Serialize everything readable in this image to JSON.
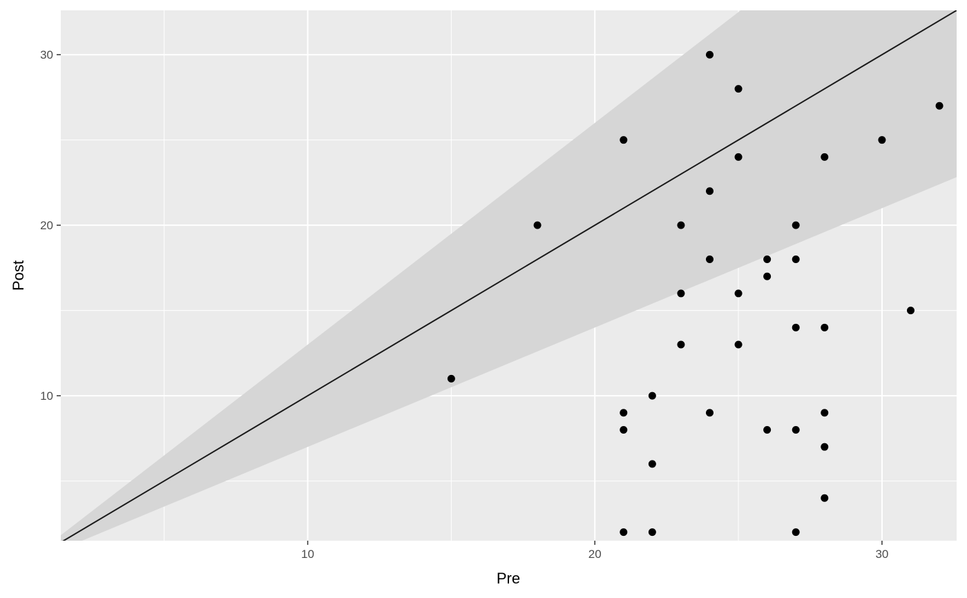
{
  "chart_data": {
    "type": "scatter",
    "xlabel": "Pre",
    "ylabel": "Post",
    "xlim": [
      1.4,
      32.6
    ],
    "ylim": [
      1.5,
      32.6
    ],
    "x_ticks": [
      10,
      20,
      30
    ],
    "y_ticks": [
      10,
      20,
      30
    ],
    "x_tick_labels": [
      "10",
      "20",
      "30"
    ],
    "y_tick_labels": [
      "10",
      "20",
      "30"
    ],
    "x_minor": [
      5,
      15,
      25
    ],
    "y_minor": [
      5,
      15,
      25
    ],
    "grid": true,
    "reference_line": {
      "slope": 1,
      "intercept": 0
    },
    "bands": [
      {
        "lower_slope": 0.7,
        "upper_slope": 1.3
      }
    ],
    "points": [
      {
        "x": 15,
        "y": 11
      },
      {
        "x": 18,
        "y": 20
      },
      {
        "x": 21,
        "y": 25
      },
      {
        "x": 21,
        "y": 9
      },
      {
        "x": 21,
        "y": 8
      },
      {
        "x": 21,
        "y": 2
      },
      {
        "x": 22,
        "y": 10
      },
      {
        "x": 22,
        "y": 6
      },
      {
        "x": 22,
        "y": 2
      },
      {
        "x": 23,
        "y": 20
      },
      {
        "x": 23,
        "y": 16
      },
      {
        "x": 23,
        "y": 13
      },
      {
        "x": 24,
        "y": 30
      },
      {
        "x": 24,
        "y": 22
      },
      {
        "x": 24,
        "y": 18
      },
      {
        "x": 24,
        "y": 9
      },
      {
        "x": 25,
        "y": 28
      },
      {
        "x": 25,
        "y": 24
      },
      {
        "x": 25,
        "y": 16
      },
      {
        "x": 25,
        "y": 13
      },
      {
        "x": 26,
        "y": 18
      },
      {
        "x": 26,
        "y": 17
      },
      {
        "x": 26,
        "y": 8
      },
      {
        "x": 27,
        "y": 20
      },
      {
        "x": 27,
        "y": 18
      },
      {
        "x": 27,
        "y": 14
      },
      {
        "x": 27,
        "y": 8
      },
      {
        "x": 27,
        "y": 2
      },
      {
        "x": 28,
        "y": 24
      },
      {
        "x": 28,
        "y": 14
      },
      {
        "x": 28,
        "y": 9
      },
      {
        "x": 28,
        "y": 7
      },
      {
        "x": 28,
        "y": 4
      },
      {
        "x": 30,
        "y": 25
      },
      {
        "x": 31,
        "y": 15
      },
      {
        "x": 32,
        "y": 27
      }
    ],
    "colors": {
      "panel": "#ebebeb",
      "band": "#d6d6d6",
      "grid_major": "#ffffff",
      "point": "#000000",
      "line": "#1a1a1a"
    }
  }
}
